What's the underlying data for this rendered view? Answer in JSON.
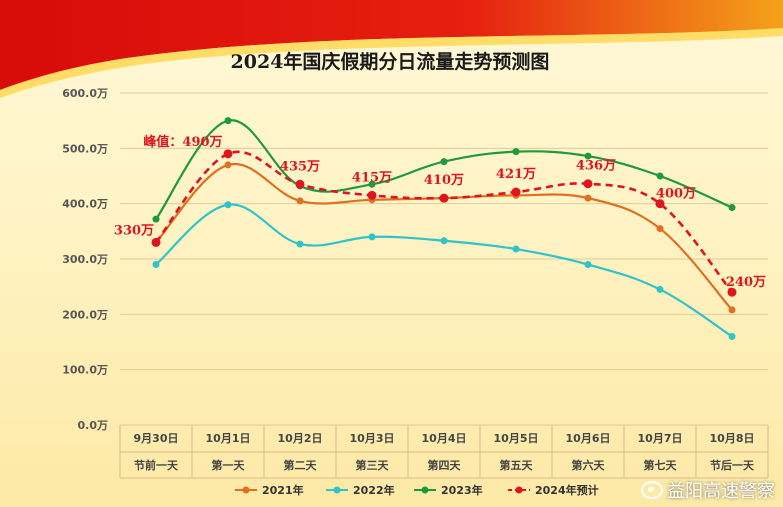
{
  "chart_data": {
    "type": "line",
    "title": "2024年国庆假期分日流量走势预测图",
    "ylim": [
      0,
      600
    ],
    "y_ticks": [
      "0.0万",
      "100.0万",
      "200.0万",
      "300.0万",
      "400.0万",
      "500.0万",
      "600.0万"
    ],
    "categories": [
      "9月30日",
      "10月1日",
      "10月2日",
      "10月3日",
      "10月4日",
      "10月5日",
      "10月6日",
      "10月7日",
      "10月8日"
    ],
    "categories_sub": [
      "节前一天",
      "第一天",
      "第二天",
      "第三天",
      "第四天",
      "第五天",
      "第六天",
      "第七天",
      "节后一天"
    ],
    "series": [
      {
        "name": "2021年",
        "color": "#e07020",
        "values": [
          330,
          470,
          405,
          407,
          410,
          415,
          410,
          355,
          208
        ]
      },
      {
        "name": "2022年",
        "color": "#2ec4c9",
        "values": [
          290,
          398,
          327,
          340,
          333,
          318,
          290,
          245,
          160
        ]
      },
      {
        "name": "2023年",
        "color": "#1e9a3c",
        "values": [
          372,
          550,
          432,
          435,
          476,
          494,
          486,
          450,
          393
        ]
      },
      {
        "name": "2024年预计",
        "color": "#e0141e",
        "dashed": true,
        "values": [
          330,
          490,
          435,
          415,
          410,
          421,
          436,
          400,
          240
        ]
      }
    ],
    "annotations": [
      "330万",
      "峰值：490万",
      "435万",
      "415万",
      "410万",
      "421万",
      "436万",
      "400万",
      "240万"
    ]
  },
  "watermark": "益阳高速警察"
}
